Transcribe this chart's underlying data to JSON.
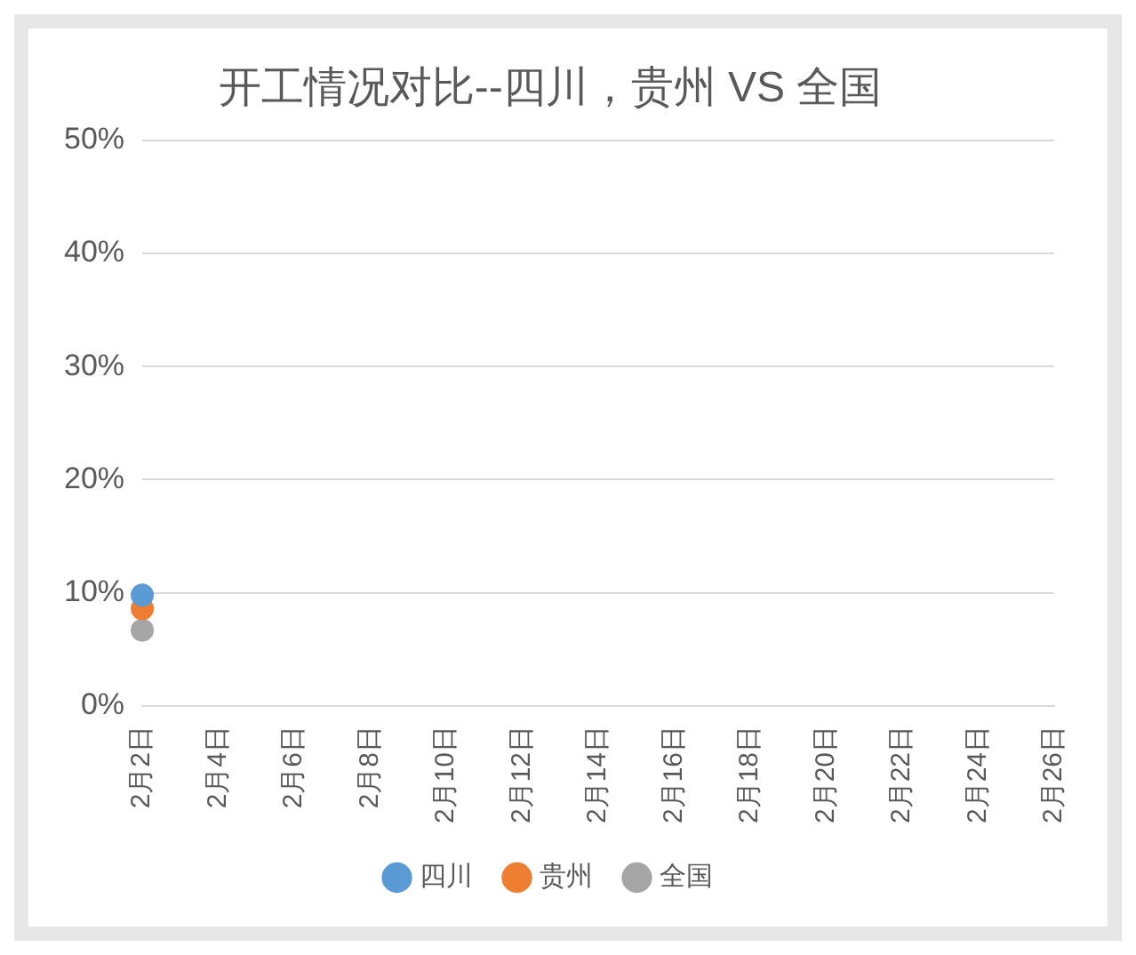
{
  "chart_data": {
    "type": "line",
    "title": "开工情况对比--四川，贵州 VS 全国",
    "categories": [
      "2月2日",
      "2月4日",
      "2月6日",
      "2月8日",
      "2月10日",
      "2月12日",
      "2月14日",
      "2月16日",
      "2月18日",
      "2月20日",
      "2月22日",
      "2月24日",
      "2月26日"
    ],
    "series": [
      {
        "name": "四川",
        "color": "#5b9bd5",
        "values": [
          9.8,
          null,
          null,
          null,
          null,
          null,
          null,
          null,
          null,
          null,
          null,
          null,
          null
        ]
      },
      {
        "name": "贵州",
        "color": "#ed7d31",
        "values": [
          8.6,
          null,
          null,
          null,
          null,
          null,
          null,
          null,
          null,
          null,
          null,
          null,
          null
        ]
      },
      {
        "name": "全国",
        "color": "#a5a5a5",
        "values": [
          6.7,
          null,
          null,
          null,
          null,
          null,
          null,
          null,
          null,
          null,
          null,
          null,
          null
        ]
      }
    ],
    "ylim": [
      0,
      50
    ],
    "yticks": [
      {
        "value": 0,
        "label": "0%"
      },
      {
        "value": 10,
        "label": "10%"
      },
      {
        "value": 20,
        "label": "20%"
      },
      {
        "value": 30,
        "label": "30%"
      },
      {
        "value": 40,
        "label": "40%"
      },
      {
        "value": 50,
        "label": "50%"
      }
    ],
    "grid": "y",
    "legend": "bottom",
    "marker": "circle"
  }
}
